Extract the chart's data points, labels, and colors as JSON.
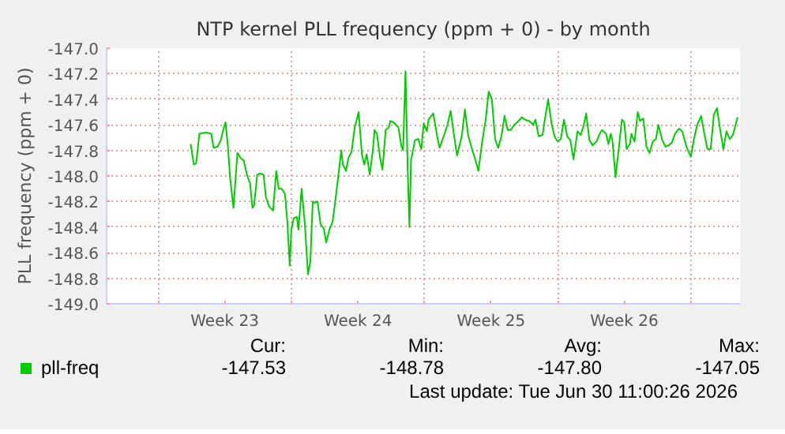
{
  "chart_data": {
    "type": "line",
    "title": "NTP kernel PLL frequency (ppm + 0) - by month",
    "ylabel": "PLL frequency (ppm + 0)",
    "xlim": [
      "2026-05-29T07:00",
      "2026-07-01T14:00"
    ],
    "ylim": [
      -149.0,
      -147.0
    ],
    "xticks": [
      {
        "value": "2026-06-01",
        "label": null
      },
      {
        "value": "2026-06-04T12:00",
        "label": "Week 23"
      },
      {
        "value": "2026-06-08",
        "label": null
      },
      {
        "value": "2026-06-11T12:00",
        "label": "Week 24"
      },
      {
        "value": "2026-06-15",
        "label": null
      },
      {
        "value": "2026-06-18T12:00",
        "label": "Week 25"
      },
      {
        "value": "2026-06-22",
        "label": null
      },
      {
        "value": "2026-06-25T12:00",
        "label": "Week 26"
      },
      {
        "value": "2026-06-29",
        "label": null
      }
    ],
    "yticks": [
      {
        "value": -149.0,
        "label": "-149.0"
      },
      {
        "value": -148.8,
        "label": "-148.8"
      },
      {
        "value": -148.6,
        "label": "-148.6"
      },
      {
        "value": -148.4,
        "label": "-148.4"
      },
      {
        "value": -148.2,
        "label": "-148.2"
      },
      {
        "value": -148.0,
        "label": "-148.0"
      },
      {
        "value": -147.8,
        "label": "-147.8"
      },
      {
        "value": -147.6,
        "label": "-147.6"
      },
      {
        "value": -147.4,
        "label": "-147.4"
      },
      {
        "value": -147.2,
        "label": "-147.2"
      },
      {
        "value": -147.0,
        "label": "-147.0"
      }
    ],
    "grid": true,
    "legend": "bottom",
    "marker": "none",
    "line_style": "solid",
    "annotations": [
      "Cur:",
      "Min:",
      "Avg:",
      "Max:",
      "-147.53",
      "-148.78",
      "-147.80",
      "-147.05",
      "Last update: Tue Jun 30 11:00:26 2026"
    ],
    "series": [
      {
        "name": "pll-freq",
        "color": "#00cc00",
        "x": [
          "2026-06-02T17:00",
          "2026-06-02T21:00",
          "2026-06-03T00:00",
          "2026-06-03T04:00",
          "2026-06-03T12:00",
          "2026-06-03T13:00",
          "2026-06-03T19:00",
          "2026-06-03T22:00",
          "2026-06-04T03:00",
          "2026-06-04T07:00",
          "2026-06-04T11:00",
          "2026-06-04T13:00",
          "2026-06-04T16:00",
          "2026-06-04T19:00",
          "2026-06-04T23:00",
          "2026-06-05T04:00",
          "2026-06-05T08:00",
          "2026-06-05T12:00",
          "2026-06-05T16:00",
          "2026-06-05T20:00",
          "2026-06-05T23:00",
          "2026-06-06T01:00",
          "2026-06-06T05:00",
          "2026-06-06T09:00",
          "2026-06-06T13:00",
          "2026-06-06T16:00",
          "2026-06-06T20:00",
          "2026-06-07T01:00",
          "2026-06-07T05:00",
          "2026-06-07T08:00",
          "2026-06-07T12:00",
          "2026-06-07T16:00",
          "2026-06-07T19:00",
          "2026-06-07T22:00",
          "2026-06-08T00:00",
          "2026-06-08T03:00",
          "2026-06-08T07:00",
          "2026-06-08T09:00",
          "2026-06-08T13:00",
          "2026-06-08T17:00",
          "2026-06-08T21:00",
          "2026-06-09T00:00",
          "2026-06-09T03:00",
          "2026-06-09T05:00",
          "2026-06-09T09:00",
          "2026-06-09T13:00",
          "2026-06-09T17:00",
          "2026-06-09T20:00",
          "2026-06-10T00:00",
          "2026-06-10T04:00",
          "2026-06-10T08:00",
          "2026-06-10T15:00",
          "2026-06-10T17:00",
          "2026-06-10T21:00",
          "2026-06-11T00:00",
          "2026-06-11T04:00",
          "2026-06-11T08:00",
          "2026-06-11T13:00",
          "2026-06-11T17:00",
          "2026-06-11T20:00",
          "2026-06-11T23:00",
          "2026-06-12T03:00",
          "2026-06-12T07:00",
          "2026-06-12T09:00",
          "2026-06-12T12:00",
          "2026-06-12T16:00",
          "2026-06-12T19:00",
          "2026-06-12T23:00",
          "2026-06-13T03:00",
          "2026-06-13T05:00",
          "2026-06-13T09:00",
          "2026-06-13T15:00",
          "2026-06-13T19:00",
          "2026-06-13T21:00",
          "2026-06-14T00:00",
          "2026-06-14T03:00",
          "2026-06-14T05:00",
          "2026-06-14T07:00",
          "2026-06-14T12:00",
          "2026-06-14T16:00",
          "2026-06-14T20:00",
          "2026-06-14T23:00",
          "2026-06-15T03:00",
          "2026-06-15T05:00",
          "2026-06-15T11:00",
          "2026-06-15T16:00",
          "2026-06-15T19:00",
          "2026-06-15T23:00",
          "2026-06-16T05:00",
          "2026-06-16T09:00",
          "2026-06-16T13:00",
          "2026-06-16T17:00",
          "2026-06-16T23:00",
          "2026-06-17T03:00",
          "2026-06-17T07:00",
          "2026-06-17T11:00",
          "2026-06-17T16:00",
          "2026-06-17T20:00",
          "2026-06-18T01:00",
          "2026-06-18T05:00",
          "2026-06-18T09:00",
          "2026-06-18T13:00",
          "2026-06-18T17:00",
          "2026-06-18T21:00",
          "2026-06-19T01:00",
          "2026-06-19T05:00",
          "2026-06-19T09:00",
          "2026-06-19T13:00",
          "2026-06-19T17:00",
          "2026-06-19T21:00",
          "2026-06-20T03:00",
          "2026-06-20T07:00",
          "2026-06-20T12:00",
          "2026-06-20T17:00",
          "2026-06-20T20:00",
          "2026-06-21T00:00",
          "2026-06-21T05:00",
          "2026-06-21T08:00",
          "2026-06-21T12:00",
          "2026-06-21T16:00",
          "2026-06-21T20:00",
          "2026-06-22T00:00",
          "2026-06-22T04:00",
          "2026-06-22T08:00",
          "2026-06-22T12:00",
          "2026-06-22T16:00",
          "2026-06-22T20:00",
          "2026-06-23T01:00",
          "2026-06-23T05:00",
          "2026-06-23T09:00",
          "2026-06-23T12:00",
          "2026-06-23T16:00",
          "2026-06-23T20:00",
          "2026-06-24T01:00",
          "2026-06-24T05:00",
          "2026-06-24T08:00",
          "2026-06-24T13:00",
          "2026-06-24T16:00",
          "2026-06-24T19:00",
          "2026-06-24T21:00",
          "2026-06-25T01:00",
          "2026-06-25T05:00",
          "2026-06-25T09:00",
          "2026-06-25T12:00",
          "2026-06-25T15:00",
          "2026-06-25T19:00",
          "2026-06-25T21:00",
          "2026-06-26T01:00",
          "2026-06-26T05:00",
          "2026-06-26T08:00",
          "2026-06-26T12:00",
          "2026-06-26T16:00",
          "2026-06-26T20:00",
          "2026-06-27T00:00",
          "2026-06-27T04:00",
          "2026-06-27T07:00",
          "2026-06-27T12:00",
          "2026-06-27T16:00",
          "2026-06-27T20:00",
          "2026-06-28T00:00",
          "2026-06-28T04:00",
          "2026-06-28T09:00",
          "2026-06-28T13:00",
          "2026-06-28T19:00",
          "2026-06-29T00:00",
          "2026-06-29T04:00",
          "2026-06-29T08:00",
          "2026-06-29T11:00",
          "2026-06-29T13:00",
          "2026-06-29T17:00",
          "2026-06-29T21:00",
          "2026-06-30T01:00",
          "2026-06-30T05:00",
          "2026-06-30T09:00",
          "2026-06-30T13:00",
          "2026-06-30T17:00",
          "2026-06-30T21:00",
          "2026-07-01T01:00",
          "2026-07-01T05:00",
          "2026-07-01T11:00"
        ],
        "values": [
          -147.75,
          -147.91,
          -147.9,
          -147.67,
          -147.66,
          -147.66,
          -147.67,
          -147.78,
          -147.77,
          -147.72,
          -147.62,
          -147.58,
          -147.77,
          -148.03,
          -148.25,
          -147.82,
          -147.86,
          -147.88,
          -147.99,
          -148.06,
          -148.25,
          -148.23,
          -147.99,
          -147.98,
          -147.99,
          -148.17,
          -148.24,
          -148.27,
          -147.96,
          -148.1,
          -148.1,
          -148.14,
          -148.36,
          -148.7,
          -148.42,
          -148.33,
          -148.32,
          -148.42,
          -148.1,
          -148.37,
          -148.77,
          -148.67,
          -148.2,
          -148.21,
          -148.2,
          -148.38,
          -148.41,
          -148.52,
          -148.42,
          -148.36,
          -148.17,
          -147.8,
          -147.91,
          -147.96,
          -147.86,
          -147.81,
          -147.62,
          -147.5,
          -147.83,
          -147.91,
          -147.83,
          -147.99,
          -147.79,
          -147.64,
          -147.67,
          -147.86,
          -147.95,
          -147.64,
          -147.62,
          -147.57,
          -147.58,
          -147.62,
          -147.77,
          -147.8,
          -147.18,
          -147.99,
          -148.4,
          -147.88,
          -147.72,
          -147.71,
          -147.79,
          -147.59,
          -147.65,
          -147.56,
          -147.51,
          -147.69,
          -147.78,
          -147.71,
          -147.6,
          -147.49,
          -147.67,
          -147.84,
          -147.69,
          -147.48,
          -147.68,
          -147.77,
          -147.87,
          -147.96,
          -147.72,
          -147.57,
          -147.34,
          -147.4,
          -147.71,
          -147.78,
          -147.69,
          -147.53,
          -147.64,
          -147.64,
          -147.6,
          -147.58,
          -147.54,
          -147.56,
          -147.57,
          -147.6,
          -147.56,
          -147.69,
          -147.68,
          -147.55,
          -147.4,
          -147.58,
          -147.69,
          -147.73,
          -147.71,
          -147.56,
          -147.69,
          -147.72,
          -147.87,
          -147.65,
          -147.68,
          -147.6,
          -147.51,
          -147.72,
          -147.76,
          -147.73,
          -147.67,
          -147.64,
          -147.67,
          -147.75,
          -147.67,
          -147.72,
          -148.01,
          -147.79,
          -147.56,
          -147.58,
          -147.79,
          -147.75,
          -147.67,
          -147.73,
          -147.5,
          -147.57,
          -147.55,
          -147.77,
          -147.82,
          -147.73,
          -147.71,
          -147.6,
          -147.72,
          -147.77,
          -147.76,
          -147.74,
          -147.67,
          -147.63,
          -147.65,
          -147.78,
          -147.85,
          -147.71,
          -147.6,
          -147.56,
          -147.53,
          -147.67,
          -147.79,
          -147.79,
          -147.52,
          -147.47,
          -147.64,
          -147.79,
          -147.65,
          -147.71,
          -147.68,
          -147.54
        ]
      }
    ]
  }
}
